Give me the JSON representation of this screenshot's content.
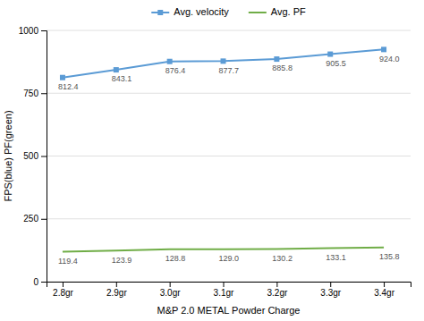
{
  "chart_data": {
    "type": "line",
    "x": [
      2.8,
      2.9,
      3.0,
      3.1,
      3.2,
      3.3,
      3.4
    ],
    "series": [
      {
        "name": "Avg. velocity",
        "color": "#5b9bd5",
        "marker": "square",
        "values": [
          812.4,
          843.1,
          876.4,
          877.7,
          885.8,
          905.5,
          924.0
        ],
        "value_labels": [
          "812.4",
          "843.1",
          "876.4",
          "877.7",
          "885.8",
          "905.5",
          "924.0"
        ]
      },
      {
        "name": "Avg. PF",
        "color": "#70ad47",
        "marker": "none",
        "values": [
          119.4,
          123.9,
          128.8,
          129.0,
          130.2,
          133.1,
          135.8
        ],
        "value_labels": [
          "119.4",
          "123.9",
          "128.8",
          "129.0",
          "130.2",
          "133.1",
          "135.8"
        ]
      }
    ],
    "xlabel": "M&P 2.0 METAL Powder Charge",
    "ylabel": "FPS(blue) PF(green)",
    "xlim": [
      2.77,
      3.45
    ],
    "xticks": [
      {
        "value": 2.8,
        "label": "2.8gr"
      },
      {
        "value": 2.9,
        "label": "2.9gr"
      },
      {
        "value": 3.0,
        "label": "3.0gr"
      },
      {
        "value": 3.1,
        "label": "3.1gr"
      },
      {
        "value": 3.2,
        "label": "3.2gr"
      },
      {
        "value": 3.3,
        "label": "3.3gr"
      },
      {
        "value": 3.4,
        "label": "3.4gr"
      }
    ],
    "ylim": [
      0,
      1000
    ],
    "yticks": [
      0,
      250,
      500,
      750,
      1000
    ],
    "grid": true,
    "legend": "top",
    "data_labels": true
  }
}
